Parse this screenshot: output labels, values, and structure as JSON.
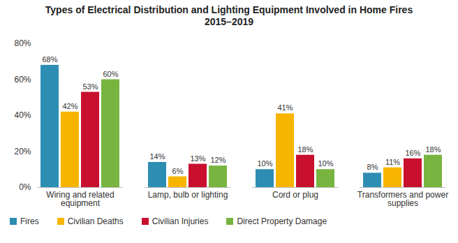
{
  "chart_data": {
    "type": "bar",
    "title": "Types of Electrical Distribution and Lighting Equipment Involved in Home Fires",
    "subtitle": "2015–2019",
    "categories": [
      "Wiring and related equipment",
      "Lamp, bulb or lighting",
      "Cord or plug",
      "Transformers and power supplies"
    ],
    "series": [
      {
        "name": "Fires",
        "color": "#2E8DB3",
        "values": [
          68,
          14,
          10,
          8
        ],
        "value_labels": [
          "68%",
          "14%",
          "10%",
          "8%"
        ]
      },
      {
        "name": "Civilian Deaths",
        "color": "#F7B500",
        "values": [
          42,
          6,
          41,
          11
        ],
        "value_labels": [
          "42%",
          "6%",
          "41%",
          "11%"
        ]
      },
      {
        "name": "Civilian Injuries",
        "color": "#C8102E",
        "values": [
          53,
          13,
          18,
          16
        ],
        "value_labels": [
          "53%",
          "13%",
          "18%",
          "16%"
        ]
      },
      {
        "name": "Direct Property Damage",
        "color": "#78B540",
        "values": [
          60,
          12,
          10,
          18
        ],
        "value_labels": [
          "60%",
          "12%",
          "10%",
          "18%"
        ]
      }
    ],
    "ylim": [
      0,
      80
    ],
    "yticks": [
      {
        "value": 0,
        "label": "0%"
      },
      {
        "value": 20,
        "label": "20%"
      },
      {
        "value": 40,
        "label": "40%"
      },
      {
        "value": 60,
        "label": "60%"
      },
      {
        "value": 80,
        "label": "80%"
      }
    ],
    "data_labels": true,
    "grid": false,
    "legend": "bottom"
  }
}
